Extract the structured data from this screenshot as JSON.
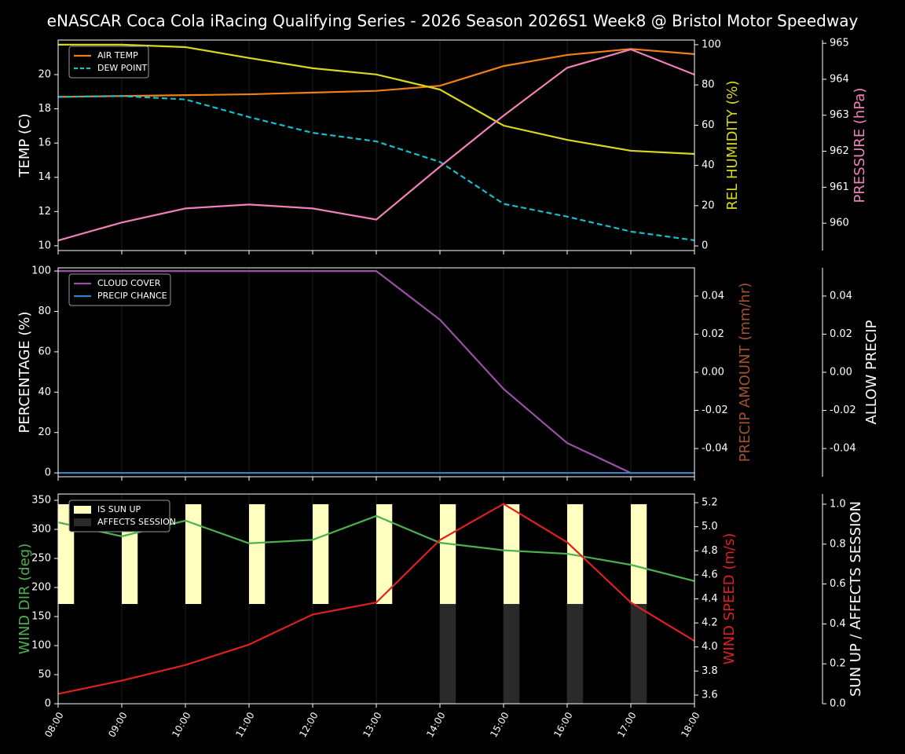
{
  "title": "eNASCAR Coca Cola iRacing Qualifying Series - 2026 Season 2026S1 Week8 @ Bristol Motor Speedway",
  "chart_data": [
    {
      "type": "line",
      "ylabel": "TEMP (C)",
      "ylabel_color": "#ffffff",
      "y2label": "REL HUMIDITY (%)",
      "y2label_color": "#d8d820",
      "y3label": "PRESSURE (hPa)",
      "y3label_color": "#f080b8",
      "ylim": [
        9.72,
        22.02
      ],
      "yticks": [
        10,
        12,
        14,
        16,
        18,
        20
      ],
      "y2lim": [
        -2.3,
        102.3
      ],
      "y2ticks": [
        0,
        20,
        40,
        60,
        80,
        100
      ],
      "y3lim": [
        959.24,
        965.09
      ],
      "y3ticks": [
        960,
        961,
        962,
        963,
        964,
        965
      ],
      "grid": true,
      "series": [
        {
          "name": "AIR TEMP",
          "color": "#f07f14",
          "in_legend": true,
          "values": [
            18.7,
            18.75,
            18.8,
            18.85,
            18.95,
            19.05,
            19.35,
            20.5,
            21.15,
            21.5,
            21.2
          ]
        },
        {
          "name": "DEW POINT",
          "color": "#17becf",
          "dashed": true,
          "in_legend": true,
          "values": [
            18.7,
            18.75,
            18.55,
            17.52,
            16.6,
            16.1,
            14.9,
            12.45,
            11.7,
            10.83,
            10.32
          ]
        },
        {
          "name": "REL HUMIDITY",
          "color": "#d8d820",
          "axis": "y2",
          "in_legend": false,
          "values": [
            100,
            100,
            98.8,
            93.4,
            88.3,
            85.2,
            77.7,
            59.8,
            52.7,
            47.3,
            45.7
          ]
        },
        {
          "name": "PRESSURE",
          "color": "#f080b8",
          "axis": "y3",
          "in_legend": false,
          "values": [
            959.52,
            960.02,
            960.41,
            960.52,
            960.41,
            960.1,
            961.57,
            962.99,
            964.32,
            964.83,
            964.13
          ]
        }
      ]
    },
    {
      "type": "line",
      "ylabel": "PERCENTAGE (%)",
      "ylabel_color": "#ffffff",
      "y2label": "PRECIP AMOUNT (mm/hr)",
      "y2label_color": "#a0522d",
      "y3label": "ALLOW PRECIP",
      "y3label_color": "#ffffff",
      "ylim": [
        -1.9,
        101.6
      ],
      "yticks": [
        0,
        20,
        40,
        60,
        80,
        100
      ],
      "y2lim": [
        -0.0548,
        0.0548
      ],
      "y2ticks": [
        -0.04,
        -0.02,
        {
          "value": 0,
          "label": "0.00"
        },
        0.02,
        0.04
      ],
      "y3lim": [
        -0.0548,
        0.0548
      ],
      "y3ticks": [
        -0.04,
        -0.02,
        {
          "value": 0,
          "label": "0.00"
        },
        0.02,
        0.04
      ],
      "grid": true,
      "series": [
        {
          "name": "CLOUD COVER",
          "color": "#9b4fa8",
          "in_legend": true,
          "values": [
            100,
            100,
            100,
            100,
            100,
            100,
            75.9,
            41.6,
            14.8,
            0,
            0
          ]
        },
        {
          "name": "PRECIP CHANCE",
          "color": "#3a7fc0",
          "in_legend": true,
          "values": [
            0,
            0,
            0,
            0,
            0,
            0,
            0,
            0,
            0,
            0,
            0
          ]
        }
      ]
    },
    {
      "type": "combo",
      "categories": [
        "08:00",
        "09:00",
        "10:00",
        "11:00",
        "12:00",
        "13:00",
        "14:00",
        "15:00",
        "16:00",
        "17:00",
        "18:00"
      ],
      "ylabel": "WIND DIR (deg)",
      "ylabel_color": "#4caf50",
      "y2label": "WIND SPEED (m/s)",
      "y2label_color": "#dd2020",
      "y3label": "SUN UP / AFFECTS SESSION",
      "y3label_color": "#ffffff",
      "ylim": [
        0,
        360.8
      ],
      "yticks": [
        0,
        50,
        100,
        150,
        200,
        250,
        300,
        350
      ],
      "y2lim": [
        3.528,
        5.272
      ],
      "y2ticks": [
        3.6,
        3.8,
        {
          "value": 4,
          "label": "4.0"
        },
        4.2,
        4.4,
        4.6,
        4.8,
        {
          "value": 5,
          "label": "5.0"
        },
        5.2
      ],
      "y3lim": [
        0,
        1.051
      ],
      "y3ticks": [
        {
          "value": 0,
          "label": "0.0"
        },
        0.2,
        0.4,
        0.6,
        0.8,
        {
          "value": 1,
          "label": "1.0"
        }
      ],
      "grid": true,
      "series": [
        {
          "name": "IS SUN UP",
          "type": "bar",
          "color": "#ffffc0",
          "axis": "y3",
          "base": 0.5,
          "in_legend": true,
          "values": [
            1,
            1,
            1,
            1,
            1,
            1,
            1,
            1,
            1,
            1,
            0
          ]
        },
        {
          "name": "AFFECTS SESSION",
          "type": "bar",
          "color": "#2a2a2a",
          "axis": "y3",
          "in_legend": true,
          "values": [
            0,
            0,
            0,
            0,
            0,
            0,
            0.5,
            0.5,
            0.5,
            0.5,
            0
          ]
        },
        {
          "name": "WIND DIR",
          "color": "#4caf50",
          "in_legend": false,
          "values": [
            312,
            288,
            315,
            276,
            282,
            323,
            277,
            264,
            258,
            239,
            211
          ]
        },
        {
          "name": "WIND SPEED",
          "color": "#dd2020",
          "axis": "y2",
          "in_legend": false,
          "values": [
            3.61,
            3.72,
            3.85,
            4.02,
            4.27,
            4.37,
            4.89,
            5.19,
            4.87,
            4.37,
            4.05
          ]
        }
      ]
    }
  ]
}
